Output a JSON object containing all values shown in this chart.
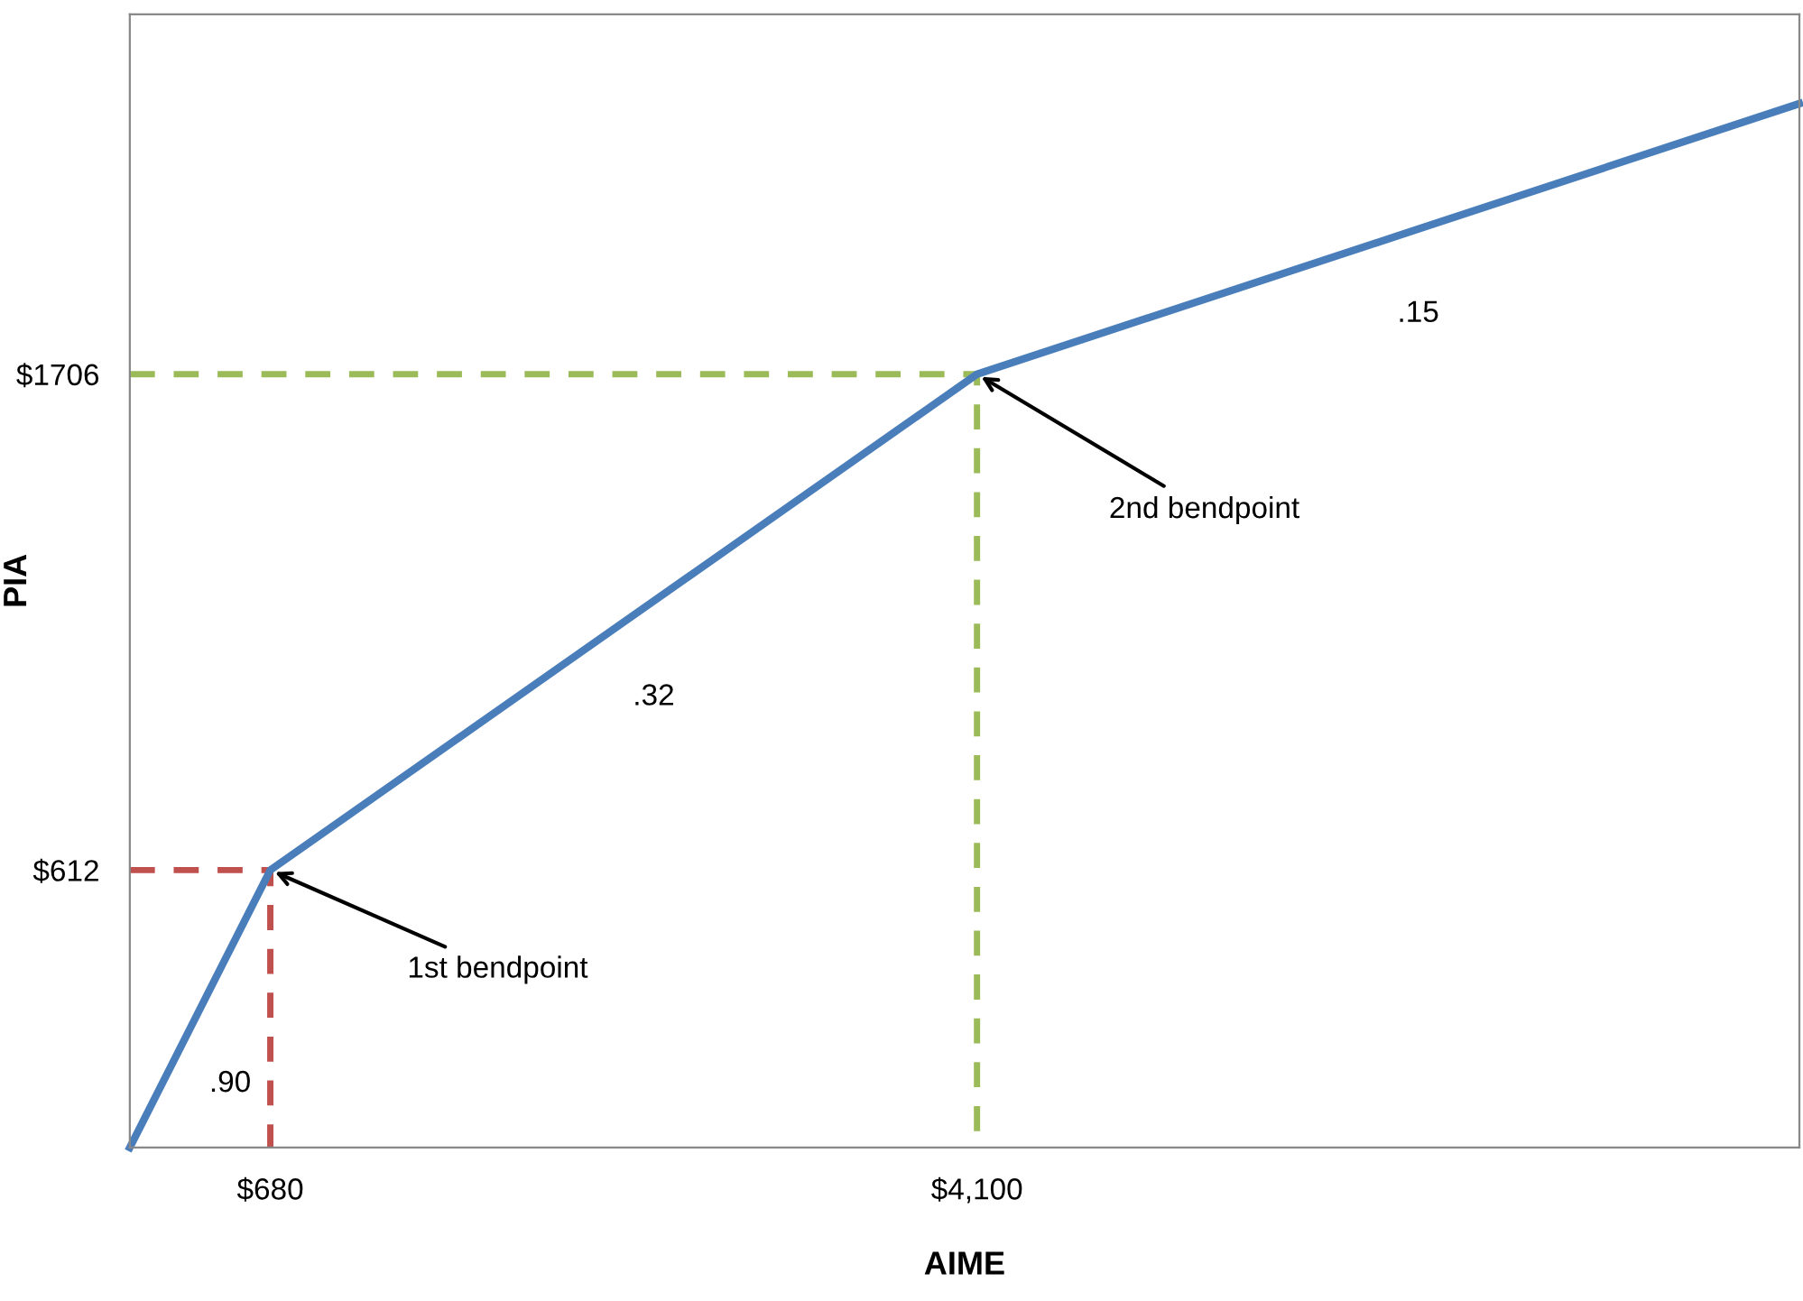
{
  "chart_data": {
    "type": "line",
    "xlabel": "AIME",
    "ylabel": "PIA",
    "series": [
      {
        "color": "#4a7ebb",
        "x": [
          0,
          680,
          4100,
          8080
        ],
        "values": [
          0,
          612,
          1706,
          2303
        ],
        "line_style": "solid"
      },
      {
        "color": "#c0504d",
        "x": [
          0,
          680,
          680
        ],
        "values": [
          612,
          612,
          0
        ],
        "line_style": "dashed"
      },
      {
        "color": "#9bbb59",
        "x": [
          0,
          4100,
          4100
        ],
        "values": [
          1706,
          1706,
          0
        ],
        "line_style": "dashed"
      }
    ],
    "xlim": [
      0,
      8080
    ],
    "ylim": [
      0,
      2500
    ],
    "xticks": [
      {
        "value": 680,
        "label": "$680"
      },
      {
        "value": 4100,
        "label": "$4,100"
      }
    ],
    "yticks": [
      {
        "value": 612,
        "label": "$612"
      },
      {
        "value": 1706,
        "label": "$1706"
      }
    ],
    "grid": false,
    "legend": false,
    "marker": "none",
    "annotations": [
      {
        "text": ".90",
        "x": 340,
        "y": 306
      },
      {
        "text": ".32",
        "x": 2390,
        "y": 1159
      },
      {
        "text": ".15",
        "x": 6090,
        "y": 2004.5
      },
      {
        "text": "1st bendpoint",
        "x": 680,
        "y": 612
      },
      {
        "text": "2nd bendpoint",
        "x": 4100,
        "y": 1706
      }
    ]
  }
}
